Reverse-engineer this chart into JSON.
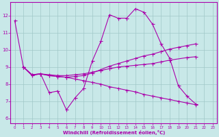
{
  "xlabel": "Windchill (Refroidissement éolien,°C)",
  "background_color": "#c8e8e8",
  "grid_color": "#a0c8c8",
  "line_color": "#aa00aa",
  "xlim": [
    -0.5,
    23.5
  ],
  "ylim": [
    5.7,
    12.8
  ],
  "yticks": [
    6,
    7,
    8,
    9,
    10,
    11,
    12
  ],
  "xticks": [
    0,
    1,
    2,
    3,
    4,
    5,
    6,
    7,
    8,
    9,
    10,
    11,
    12,
    13,
    14,
    15,
    16,
    17,
    18,
    19,
    20,
    21,
    22,
    23
  ],
  "line1_x": [
    0,
    1,
    2,
    3,
    4,
    5,
    6,
    7,
    8,
    9,
    10,
    11,
    12,
    13,
    14,
    15,
    16,
    17,
    18,
    19,
    20,
    21,
    22,
    23
  ],
  "line1_y": [
    11.7,
    9.0,
    8.5,
    8.6,
    7.5,
    7.6,
    6.5,
    7.2,
    7.75,
    9.35,
    10.5,
    12.05,
    11.85,
    11.85,
    12.4,
    12.2,
    11.5,
    10.35,
    9.5,
    7.9,
    7.3,
    6.85,
    null,
    null
  ],
  "line2_x": [
    1,
    2,
    3,
    4,
    5,
    6,
    7,
    8,
    9,
    10,
    11,
    12,
    13,
    14,
    15,
    16,
    17,
    18,
    19,
    20,
    21,
    22,
    23
  ],
  "line2_y": [
    9.0,
    8.55,
    8.6,
    8.5,
    8.45,
    8.4,
    8.45,
    8.5,
    8.65,
    8.85,
    9.05,
    9.2,
    9.35,
    9.5,
    9.65,
    9.75,
    9.9,
    10.05,
    10.15,
    10.25,
    10.35,
    null,
    null
  ],
  "line3_x": [
    1,
    2,
    3,
    4,
    5,
    6,
    7,
    8,
    9,
    10,
    11,
    12,
    13,
    14,
    15,
    16,
    17,
    18,
    19,
    20,
    21,
    22,
    23
  ],
  "line3_y": [
    9.0,
    8.55,
    8.6,
    8.5,
    8.45,
    8.4,
    8.3,
    8.2,
    8.1,
    8.0,
    7.85,
    7.75,
    7.65,
    7.55,
    7.4,
    7.3,
    7.2,
    7.1,
    7.0,
    6.9,
    6.8,
    null,
    null
  ],
  "line4_x": [
    1,
    2,
    3,
    4,
    5,
    6,
    7,
    8,
    9,
    10,
    11,
    12,
    13,
    14,
    15,
    16,
    17,
    18,
    20,
    21,
    22,
    23
  ],
  "line4_y": [
    9.0,
    8.55,
    8.6,
    8.55,
    8.5,
    8.5,
    8.55,
    8.6,
    8.7,
    8.8,
    8.9,
    9.0,
    9.05,
    9.1,
    9.15,
    9.2,
    9.3,
    9.4,
    9.55,
    9.6,
    null,
    null
  ]
}
